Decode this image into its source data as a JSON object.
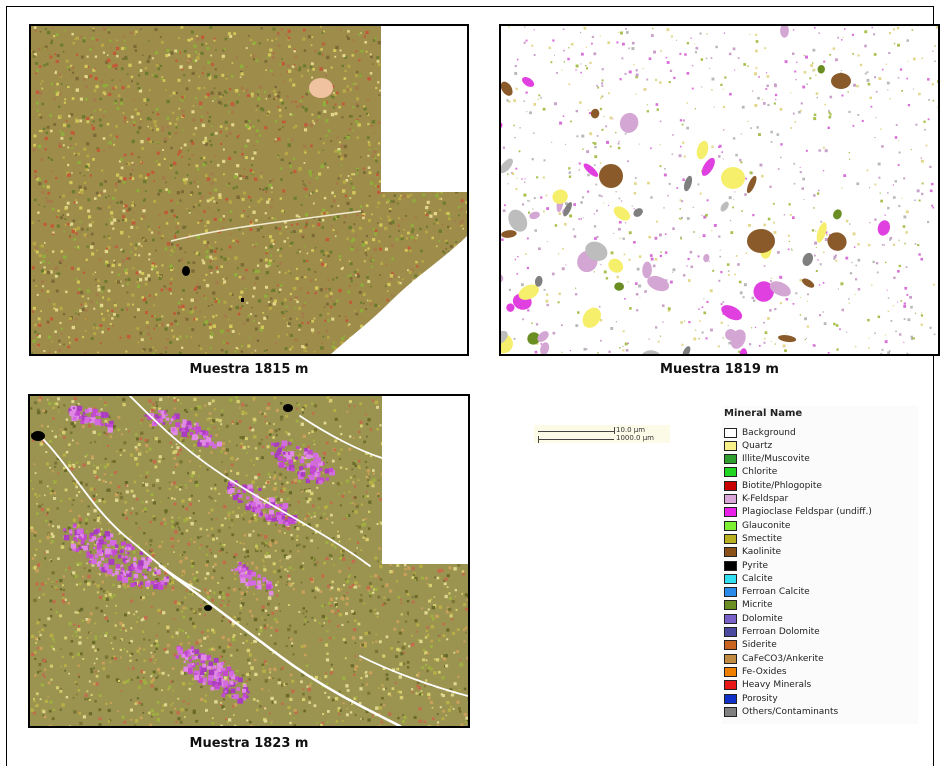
{
  "panels": [
    {
      "id": "p1815",
      "caption": "Muestra 1815 m",
      "bg": "#9d8c4a",
      "palette": [
        "#b8a845",
        "#7a6a35",
        "#c25a3a",
        "#8fae3a",
        "#d4c75a",
        "#6d7b2f",
        "#e2d88b",
        "#a67b4a"
      ]
    },
    {
      "id": "p1819",
      "caption": "Muestra 1819 m",
      "bg": "#ffffff",
      "palette": [
        "#f6ef6c",
        "#e040e0",
        "#d4a6d4",
        "#c3c3c3",
        "#7f7f7f",
        "#8a5a2a",
        "#6b8e23",
        "#f4e9a0"
      ]
    },
    {
      "id": "p1823",
      "caption": "Muestra 1823 m",
      "bg": "#9b9350",
      "palette": [
        "#b8b046",
        "#7b7535",
        "#c8a05a",
        "#a0b040",
        "#d7cf6f",
        "#6a6a2a",
        "#c56a4a",
        "#e0d890"
      ]
    }
  ],
  "scale_bar": {
    "label1": "10.0 µm",
    "label2": "1000.0 µm"
  },
  "legend": {
    "title": "Mineral Name",
    "items": [
      {
        "label": "Background",
        "color": "#ffffff"
      },
      {
        "label": "Quartz",
        "color": "#f8f088"
      },
      {
        "label": "Illite/Muscovite",
        "color": "#2e9e2e"
      },
      {
        "label": "Chlorite",
        "color": "#22d622"
      },
      {
        "label": "Biotite/Phlogopite",
        "color": "#c80000"
      },
      {
        "label": "K-Feldspar",
        "color": "#d8a6d8"
      },
      {
        "label": "Plagioclase Feldspar (undiff.)",
        "color": "#e820e8"
      },
      {
        "label": "Glauconite",
        "color": "#7ef032"
      },
      {
        "label": "Smectite",
        "color": "#b8b020"
      },
      {
        "label": "Kaolinite",
        "color": "#8a5018"
      },
      {
        "label": "Pyrite",
        "color": "#000000"
      },
      {
        "label": "Calcite",
        "color": "#30e0f0"
      },
      {
        "label": "Ferroan Calcite",
        "color": "#2a8ae8"
      },
      {
        "label": "Micrite",
        "color": "#6b8e23"
      },
      {
        "label": "Dolomite",
        "color": "#7860c8"
      },
      {
        "label": "Ferroan Dolomite",
        "color": "#4a4aa0"
      },
      {
        "label": "Siderite",
        "color": "#c86420"
      },
      {
        "label": "CaFeCO3/Ankerite",
        "color": "#c08a40"
      },
      {
        "label": "Fe-Oxides",
        "color": "#f08000"
      },
      {
        "label": "Heavy Minerals",
        "color": "#e81818"
      },
      {
        "label": "Porosity",
        "color": "#1030c8"
      },
      {
        "label": "Others/Contaminants",
        "color": "#808080"
      }
    ]
  }
}
